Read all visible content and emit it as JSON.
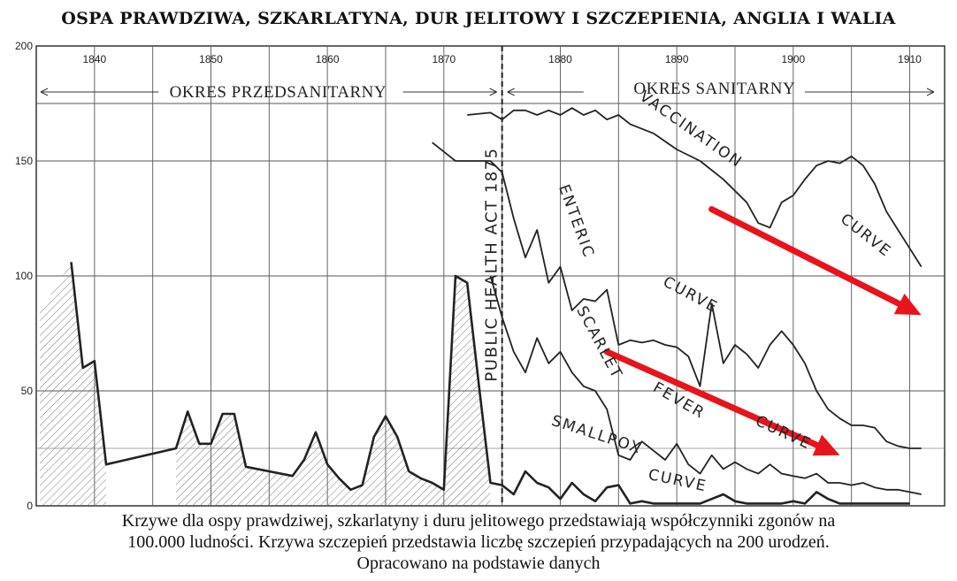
{
  "title": "OSPA PRAWDZIWA, SZKARLATYNA, DUR JELITOWY I SZCZEPIENIA, ANGLIA I WALIA",
  "caption_lines": [
    "Krzywe dla ospy prawdziwej, szkarlatyny i duru jelitowego przedstawiają współczynniki zgonów na",
    "100.000 ludności. Krzywa szczepień przedstawia liczbę szczepień przypadających na 200 urodzeń.",
    "Opracowano na podstawie danych"
  ],
  "chart_data": {
    "type": "line",
    "xlim": [
      1835,
      1913
    ],
    "ylim": [
      0,
      200
    ],
    "y_ticks": [
      0,
      50,
      100,
      150,
      200
    ],
    "x_ticks": [
      1840,
      1850,
      1860,
      1870,
      1880,
      1890,
      1900,
      1910
    ],
    "grid": true,
    "periods": [
      {
        "label": "OKRES PRZEDSANITARNY",
        "from": 1835,
        "to": 1875
      },
      {
        "label": "OKRES SANITARNY",
        "from": 1875,
        "to": 1913
      }
    ],
    "marker": {
      "x": 1875,
      "label": "PUBLIC HEALTH ACT 1875",
      "style": "dashed"
    },
    "series": [
      {
        "name": "VACCINATION CURVE",
        "color": "#222222",
        "points": [
          [
            1872,
            170
          ],
          [
            1874,
            171
          ],
          [
            1875,
            168
          ],
          [
            1876,
            172
          ],
          [
            1877,
            172
          ],
          [
            1878,
            170
          ],
          [
            1879,
            172
          ],
          [
            1880,
            170
          ],
          [
            1881,
            173
          ],
          [
            1882,
            170
          ],
          [
            1883,
            172
          ],
          [
            1884,
            168
          ],
          [
            1885,
            170
          ],
          [
            1886,
            166
          ],
          [
            1888,
            162
          ],
          [
            1890,
            155
          ],
          [
            1892,
            150
          ],
          [
            1894,
            142
          ],
          [
            1896,
            132
          ],
          [
            1897,
            123
          ],
          [
            1898,
            121
          ],
          [
            1899,
            132
          ],
          [
            1900,
            135
          ],
          [
            1901,
            142
          ],
          [
            1902,
            148
          ],
          [
            1903,
            150
          ],
          [
            1904,
            149
          ],
          [
            1905,
            152
          ],
          [
            1906,
            148
          ],
          [
            1907,
            140
          ],
          [
            1908,
            128
          ],
          [
            1909,
            120
          ],
          [
            1910,
            112
          ],
          [
            1911,
            104
          ]
        ]
      },
      {
        "name": "ENTERIC CURVE",
        "color": "#222222",
        "points": [
          [
            1869,
            158
          ],
          [
            1871,
            150
          ],
          [
            1872,
            150
          ],
          [
            1873,
            150
          ],
          [
            1874,
            150
          ],
          [
            1875,
            145
          ],
          [
            1876,
            125
          ],
          [
            1877,
            108
          ],
          [
            1878,
            120
          ],
          [
            1879,
            97
          ],
          [
            1880,
            104
          ],
          [
            1881,
            85
          ],
          [
            1882,
            90
          ],
          [
            1883,
            89
          ],
          [
            1884,
            94
          ],
          [
            1885,
            70
          ],
          [
            1886,
            72
          ],
          [
            1887,
            71
          ],
          [
            1888,
            72
          ],
          [
            1889,
            70
          ],
          [
            1890,
            69
          ],
          [
            1891,
            65
          ],
          [
            1892,
            52
          ],
          [
            1893,
            88
          ],
          [
            1894,
            62
          ],
          [
            1895,
            70
          ],
          [
            1896,
            66
          ],
          [
            1897,
            60
          ],
          [
            1898,
            70
          ],
          [
            1899,
            76
          ],
          [
            1900,
            70
          ],
          [
            1901,
            62
          ],
          [
            1902,
            50
          ],
          [
            1903,
            42
          ],
          [
            1904,
            38
          ],
          [
            1905,
            35
          ],
          [
            1906,
            35
          ],
          [
            1907,
            34
          ],
          [
            1908,
            28
          ],
          [
            1909,
            26
          ],
          [
            1910,
            25
          ],
          [
            1911,
            25
          ]
        ]
      },
      {
        "name": "SCARLET FEVER CURVE",
        "color": "#222222",
        "points": [
          [
            1874,
            100
          ],
          [
            1875,
            82
          ],
          [
            1876,
            67
          ],
          [
            1877,
            58
          ],
          [
            1878,
            73
          ],
          [
            1879,
            62
          ],
          [
            1880,
            67
          ],
          [
            1881,
            58
          ],
          [
            1882,
            52
          ],
          [
            1883,
            50
          ],
          [
            1884,
            42
          ],
          [
            1885,
            22
          ],
          [
            1886,
            20
          ],
          [
            1887,
            28
          ],
          [
            1888,
            24
          ],
          [
            1889,
            20
          ],
          [
            1890,
            27
          ],
          [
            1891,
            18
          ],
          [
            1892,
            14
          ],
          [
            1893,
            22
          ],
          [
            1894,
            16
          ],
          [
            1895,
            19
          ],
          [
            1896,
            16
          ],
          [
            1897,
            14
          ],
          [
            1898,
            18
          ],
          [
            1899,
            14
          ],
          [
            1900,
            13
          ],
          [
            1901,
            12
          ],
          [
            1902,
            14
          ],
          [
            1903,
            10
          ],
          [
            1904,
            10
          ],
          [
            1905,
            9
          ],
          [
            1906,
            10
          ],
          [
            1907,
            8
          ],
          [
            1908,
            7
          ],
          [
            1909,
            7
          ],
          [
            1910,
            6
          ],
          [
            1911,
            5
          ]
        ]
      },
      {
        "name": "SMALLPOX CURVE",
        "color": "#222222",
        "points": [
          [
            1838,
            106
          ],
          [
            1839,
            60
          ],
          [
            1840,
            63
          ],
          [
            1841,
            18
          ],
          [
            1847,
            25
          ],
          [
            1848,
            41
          ],
          [
            1849,
            27
          ],
          [
            1850,
            27
          ],
          [
            1851,
            40
          ],
          [
            1852,
            40
          ],
          [
            1853,
            17
          ],
          [
            1855,
            15
          ],
          [
            1857,
            13
          ],
          [
            1858,
            20
          ],
          [
            1859,
            32
          ],
          [
            1860,
            18
          ],
          [
            1861,
            12
          ],
          [
            1862,
            7
          ],
          [
            1863,
            9
          ],
          [
            1864,
            30
          ],
          [
            1865,
            39
          ],
          [
            1866,
            30
          ],
          [
            1867,
            15
          ],
          [
            1868,
            12
          ],
          [
            1869,
            10
          ],
          [
            1870,
            7
          ],
          [
            1871,
            100
          ],
          [
            1872,
            97
          ],
          [
            1873,
            53
          ],
          [
            1874,
            10
          ],
          [
            1875,
            9
          ],
          [
            1876,
            5
          ],
          [
            1877,
            15
          ],
          [
            1878,
            10
          ],
          [
            1879,
            8
          ],
          [
            1880,
            3
          ],
          [
            1881,
            10
          ],
          [
            1882,
            5
          ],
          [
            1883,
            2
          ],
          [
            1884,
            8
          ],
          [
            1885,
            9
          ],
          [
            1886,
            1
          ],
          [
            1887,
            2
          ],
          [
            1888,
            1
          ],
          [
            1889,
            1
          ],
          [
            1890,
            1
          ],
          [
            1891,
            1
          ],
          [
            1892,
            1
          ],
          [
            1893,
            3
          ],
          [
            1894,
            5
          ],
          [
            1895,
            2
          ],
          [
            1896,
            1
          ],
          [
            1897,
            1
          ],
          [
            1898,
            1
          ],
          [
            1899,
            1
          ],
          [
            1900,
            2
          ],
          [
            1901,
            1
          ],
          [
            1902,
            6
          ],
          [
            1903,
            3
          ],
          [
            1904,
            1
          ],
          [
            1905,
            1
          ],
          [
            1906,
            1
          ],
          [
            1907,
            1
          ],
          [
            1908,
            1
          ],
          [
            1909,
            1
          ],
          [
            1910,
            1
          ]
        ]
      }
    ],
    "trend_arrows": [
      {
        "color": "#e8141c",
        "from": [
          1893,
          129
        ],
        "to": [
          1911,
          83
        ]
      },
      {
        "color": "#e8141c",
        "from": [
          1884,
          67
        ],
        "to": [
          1904,
          22
        ]
      }
    ]
  }
}
